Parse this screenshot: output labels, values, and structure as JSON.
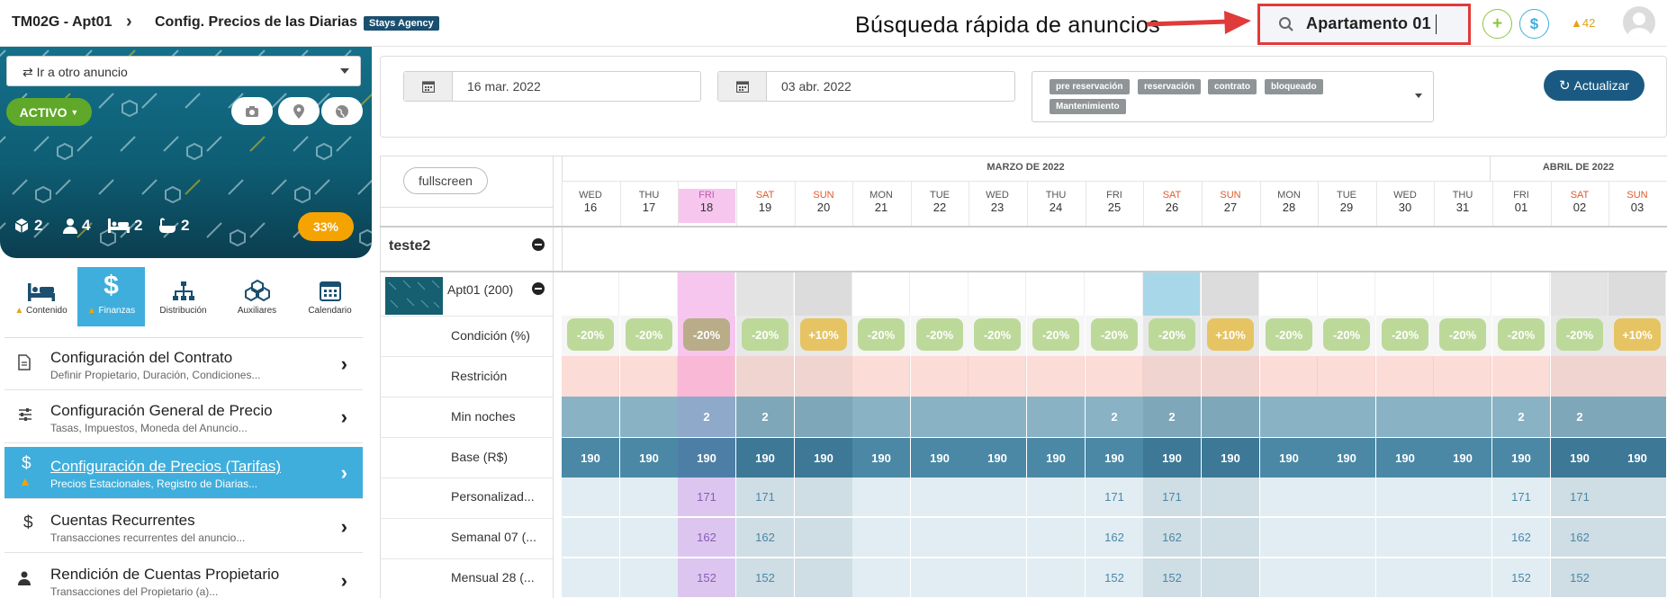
{
  "header": {
    "crumb1": "TM02G - Apt01",
    "crumb2": "Config. Precios de las Diarias",
    "badge": "Stays Agency",
    "annotation": "Búsqueda rápida de anuncios",
    "search_value": "Apartamento 01",
    "alerts_count": "42",
    "colors": {
      "add": "#8cc63f",
      "money": "#3faedc",
      "alert": "#e3a31c",
      "search_highlight": "#e03a3a"
    }
  },
  "left": {
    "goto_label": "⇄ Ir a otro anuncio",
    "status": "ACTIVO",
    "stats": [
      {
        "icon": "cube-icon",
        "value": "2"
      },
      {
        "icon": "user-icon",
        "value": "4"
      },
      {
        "icon": "bed-icon",
        "value": "2"
      },
      {
        "icon": "bath-icon",
        "value": "2"
      }
    ],
    "progress": "33%",
    "tabs": [
      {
        "label": "Contenido",
        "icon": "bed-icon",
        "warn": true
      },
      {
        "label": "Finanzas",
        "icon": "dollar-icon",
        "warn": true,
        "active": true
      },
      {
        "label": "Distribución",
        "icon": "sitemap-icon"
      },
      {
        "label": "Auxiliares",
        "icon": "cubes-icon"
      },
      {
        "label": "Calendario",
        "icon": "calendar-icon"
      }
    ],
    "menu": [
      {
        "title": "Configuración del Contrato",
        "sub": "Definir Propietario, Duración, Condiciones...",
        "icon": "document-icon"
      },
      {
        "title": "Configuración General de Precio",
        "sub": "Tasas, Impuestos, Moneda del Anuncio...",
        "icon": "sliders-icon"
      },
      {
        "title": "Configuración de Precios (Tarifas)",
        "sub": "Precios Estacionales, Registro de Diarias...",
        "icon": "dollar-icon",
        "active": true
      },
      {
        "title": "Cuentas Recurrentes",
        "sub": "Transacciones recurrentes del anuncio...",
        "icon": "dollar-icon"
      },
      {
        "title": "Rendición de Cuentas Propietario",
        "sub": "Transacciones del Propietario (a)...",
        "icon": "user-icon"
      }
    ]
  },
  "filter": {
    "date_from": "16 mar. 2022",
    "date_to": "03 abr. 2022",
    "tags": [
      "pre reservación",
      "reservación",
      "contrato",
      "bloqueado",
      "Mantenimiento"
    ],
    "update_label": "Actualizar"
  },
  "calendar": {
    "fullscreen_label": "fullscreen",
    "months": [
      "MARZO DE 2022",
      "ABRIL DE 2022"
    ],
    "days": [
      {
        "d": "WED",
        "n": "16"
      },
      {
        "d": "THU",
        "n": "17"
      },
      {
        "d": "FRI",
        "n": "18"
      },
      {
        "d": "SAT",
        "n": "19"
      },
      {
        "d": "SUN",
        "n": "20"
      },
      {
        "d": "MON",
        "n": "21"
      },
      {
        "d": "TUE",
        "n": "22"
      },
      {
        "d": "WED",
        "n": "23"
      },
      {
        "d": "THU",
        "n": "24"
      },
      {
        "d": "FRI",
        "n": "25"
      },
      {
        "d": "SAT",
        "n": "26"
      },
      {
        "d": "SUN",
        "n": "27"
      },
      {
        "d": "MON",
        "n": "28"
      },
      {
        "d": "TUE",
        "n": "29"
      },
      {
        "d": "WED",
        "n": "30"
      },
      {
        "d": "THU",
        "n": "31"
      },
      {
        "d": "FRI",
        "n": "01"
      },
      {
        "d": "SAT",
        "n": "02"
      },
      {
        "d": "SUN",
        "n": "03"
      }
    ],
    "group": "teste2",
    "listing": "Apt01 (200)",
    "rows": {
      "cond_label": "Condición (%)",
      "cond": [
        "-20%",
        "-20%",
        "-20%",
        "-20%",
        "+10%",
        "-20%",
        "-20%",
        "-20%",
        "-20%",
        "-20%",
        "-20%",
        "+10%",
        "-20%",
        "-20%",
        "-20%",
        "-20%",
        "-20%",
        "-20%",
        "+10%"
      ],
      "restr_label": "Restrición",
      "min_label": "Min noches",
      "min": [
        "",
        "",
        "2",
        "2",
        "",
        "",
        "",
        "",
        "",
        "2",
        "2",
        "",
        "",
        "",
        "",
        "",
        "2",
        "2",
        ""
      ],
      "base_label": "Base (R$)",
      "base": [
        "190",
        "190",
        "190",
        "190",
        "190",
        "190",
        "190",
        "190",
        "190",
        "190",
        "190",
        "190",
        "190",
        "190",
        "190",
        "190",
        "190",
        "190",
        "190"
      ],
      "pers_label": "Personalizad...",
      "pers": [
        "",
        "",
        "171",
        "171",
        "",
        "",
        "",
        "",
        "",
        "171",
        "171",
        "",
        "",
        "",
        "",
        "",
        "171",
        "171",
        ""
      ],
      "sem_label": "Semanal 07 (...",
      "sem": [
        "",
        "",
        "162",
        "162",
        "",
        "",
        "",
        "",
        "",
        "162",
        "162",
        "",
        "",
        "",
        "",
        "",
        "162",
        "162",
        ""
      ],
      "men_label": "Mensual 28 (...",
      "men": [
        "",
        "",
        "152",
        "152",
        "",
        "",
        "",
        "",
        "",
        "152",
        "152",
        "",
        "",
        "",
        "",
        "",
        "152",
        "152",
        ""
      ]
    }
  }
}
